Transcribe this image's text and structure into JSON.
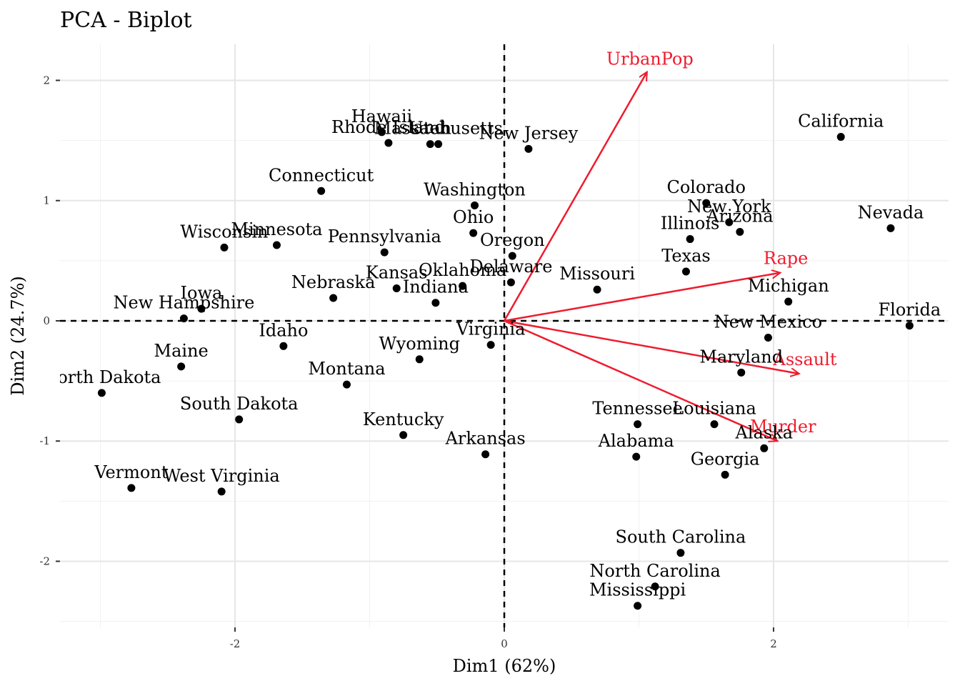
{
  "chart_data": {
    "type": "scatter",
    "title": "PCA - Biplot",
    "xlabel": "Dim1 (62%)",
    "ylabel": "Dim2 (24.7%)",
    "xlim": [
      -3.3,
      3.3
    ],
    "ylim": [
      -2.55,
      2.3
    ],
    "xticks": [
      {
        "value": -2,
        "label": "-2"
      },
      {
        "value": 0,
        "label": "0"
      },
      {
        "value": 2,
        "label": "2"
      }
    ],
    "yticks": [
      {
        "value": -2,
        "label": "-2"
      },
      {
        "value": -1,
        "label": "-1"
      },
      {
        "value": 0,
        "label": "0"
      },
      {
        "value": 1,
        "label": "1"
      },
      {
        "value": 2,
        "label": "2"
      }
    ],
    "grid": true,
    "reference_lines": {
      "x": 0,
      "y": 0,
      "style": "dashed"
    },
    "point_color": "#000000",
    "variable_color": "#ee1c2e",
    "points": [
      {
        "label": "Alabama",
        "x": 0.98,
        "y": -1.13
      },
      {
        "label": "Alaska",
        "x": 1.93,
        "y": -1.06
      },
      {
        "label": "Arizona",
        "x": 1.75,
        "y": 0.74
      },
      {
        "label": "Arkansas",
        "x": -0.14,
        "y": -1.11
      },
      {
        "label": "California",
        "x": 2.5,
        "y": 1.53
      },
      {
        "label": "Colorado",
        "x": 1.5,
        "y": 0.98
      },
      {
        "label": "Connecticut",
        "x": -1.36,
        "y": 1.08
      },
      {
        "label": "Delaware",
        "x": 0.05,
        "y": 0.32
      },
      {
        "label": "Florida",
        "x": 3.01,
        "y": -0.04
      },
      {
        "label": "Georgia",
        "x": 1.64,
        "y": -1.28
      },
      {
        "label": "Hawaii",
        "x": -0.91,
        "y": 1.57
      },
      {
        "label": "Idaho",
        "x": -1.64,
        "y": -0.21
      },
      {
        "label": "Illinois",
        "x": 1.38,
        "y": 0.68
      },
      {
        "label": "Indiana",
        "x": -0.51,
        "y": 0.15
      },
      {
        "label": "Iowa",
        "x": -2.25,
        "y": 0.1
      },
      {
        "label": "Kansas",
        "x": -0.8,
        "y": 0.27
      },
      {
        "label": "Kentucky",
        "x": -0.75,
        "y": -0.95
      },
      {
        "label": "Louisiana",
        "x": 1.56,
        "y": -0.86
      },
      {
        "label": "Maine",
        "x": -2.4,
        "y": -0.38
      },
      {
        "label": "Maryland",
        "x": 1.76,
        "y": -0.43
      },
      {
        "label": "Massachusetts",
        "x": -0.49,
        "y": 1.47
      },
      {
        "label": "Michigan",
        "x": 2.11,
        "y": 0.16
      },
      {
        "label": "Minnesota",
        "x": -1.69,
        "y": 0.63
      },
      {
        "label": "Mississippi",
        "x": 0.99,
        "y": -2.37
      },
      {
        "label": "Missouri",
        "x": 0.69,
        "y": 0.26
      },
      {
        "label": "Montana",
        "x": -1.17,
        "y": -0.53
      },
      {
        "label": "Nebraska",
        "x": -1.27,
        "y": 0.19
      },
      {
        "label": "Nevada",
        "x": 2.87,
        "y": 0.77
      },
      {
        "label": "New Hampshire",
        "x": -2.38,
        "y": 0.02
      },
      {
        "label": "New Jersey",
        "x": 0.18,
        "y": 1.43
      },
      {
        "label": "New Mexico",
        "x": 1.96,
        "y": -0.14
      },
      {
        "label": "New York",
        "x": 1.67,
        "y": 0.82
      },
      {
        "label": "North Carolina",
        "x": 1.12,
        "y": -2.21
      },
      {
        "label": "North Dakota",
        "x": -2.99,
        "y": -0.6
      },
      {
        "label": "Ohio",
        "x": -0.23,
        "y": 0.73
      },
      {
        "label": "Oklahoma",
        "x": -0.31,
        "y": 0.29
      },
      {
        "label": "Oregon",
        "x": 0.06,
        "y": 0.54
      },
      {
        "label": "Pennsylvania",
        "x": -0.89,
        "y": 0.57
      },
      {
        "label": "Rhode Island",
        "x": -0.86,
        "y": 1.48
      },
      {
        "label": "South Carolina",
        "x": 1.31,
        "y": -1.93
      },
      {
        "label": "South Dakota",
        "x": -1.97,
        "y": -0.82
      },
      {
        "label": "Tennessee",
        "x": 0.99,
        "y": -0.86
      },
      {
        "label": "Texas",
        "x": 1.35,
        "y": 0.41
      },
      {
        "label": "Utah",
        "x": -0.55,
        "y": 1.47
      },
      {
        "label": "Vermont",
        "x": -2.77,
        "y": -1.39
      },
      {
        "label": "Virginia",
        "x": -0.1,
        "y": -0.2
      },
      {
        "label": "Washington",
        "x": -0.22,
        "y": 0.96
      },
      {
        "label": "West Virginia",
        "x": -2.1,
        "y": -1.42
      },
      {
        "label": "Wisconsin",
        "x": -2.08,
        "y": 0.61
      },
      {
        "label": "Wyoming",
        "x": -0.63,
        "y": -0.32
      }
    ],
    "variables": [
      {
        "label": "Murder",
        "x": 2.03,
        "y": -1.0
      },
      {
        "label": "Assault",
        "x": 2.19,
        "y": -0.44
      },
      {
        "label": "UrbanPop",
        "x": 1.06,
        "y": 2.07
      },
      {
        "label": "Rape",
        "x": 2.05,
        "y": 0.4
      }
    ]
  }
}
